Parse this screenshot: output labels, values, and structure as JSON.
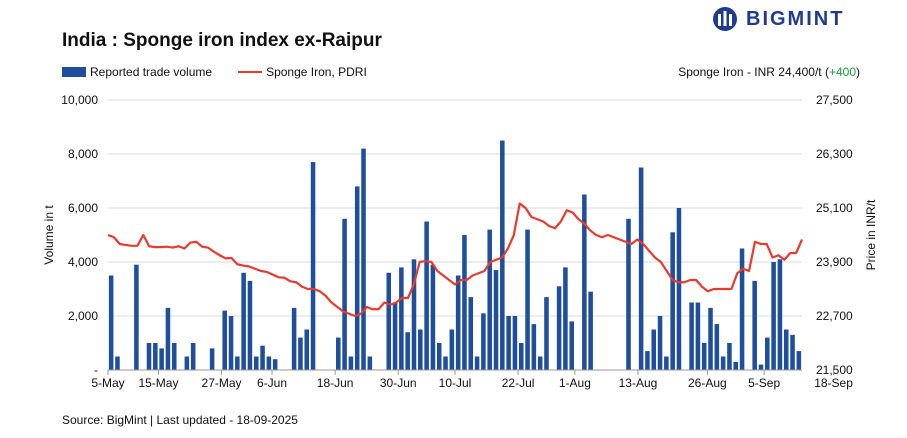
{
  "title": "India : Sponge iron index ex-Raipur",
  "brand": "BIGMINT",
  "legend": {
    "bar_label": "Reported trade volume",
    "line_label": "Sponge Iron, PDRI"
  },
  "price_note": {
    "prefix": "Sponge Iron - INR 24,400/t (",
    "change": "+400",
    "suffix": ")"
  },
  "source": "Source: BigMint | Last updated - 18-09-2025",
  "colors": {
    "bar": "#1f4e9c",
    "line": "#e83a2e",
    "grid": "#d9d9d9",
    "change": "#1a9c3a",
    "brand": "#1f3a8f"
  },
  "chart_data": {
    "type": "bar+line",
    "ylabel_left": "Volume in t",
    "ylabel_right": "Price in INR/t",
    "left_ticks": [
      "-",
      "2,000",
      "4,000",
      "6,000",
      "8,000",
      "10,000"
    ],
    "right_ticks": [
      "21,500",
      "22,700",
      "23,900",
      "25,100",
      "26,300",
      "27,500"
    ],
    "ylim_left": [
      0,
      10000
    ],
    "ylim_right": [
      21500,
      27500
    ],
    "x_tick_labels": [
      "5-May",
      "15-May",
      "27-May",
      "6-Jun",
      "18-Jun",
      "30-Jun",
      "10-Jul",
      "22-Jul",
      "1-Aug",
      "13-Aug",
      "26-Aug",
      "5-Sep",
      "18-Sep"
    ],
    "x_tick_index": [
      0,
      8,
      18,
      26,
      36,
      46,
      55,
      65,
      74,
      84,
      95,
      104,
      115
    ],
    "series": [
      {
        "name": "Reported trade volume",
        "type": "bar",
        "axis": "left",
        "values": [
          3500,
          500,
          0,
          0,
          3900,
          0,
          1000,
          1000,
          800,
          2300,
          1000,
          0,
          500,
          1000,
          0,
          0,
          800,
          0,
          2200,
          2000,
          500,
          3600,
          3300,
          500,
          900,
          500,
          400,
          0,
          0,
          2300,
          1200,
          1500,
          7700,
          0,
          0,
          0,
          1200,
          5600,
          500,
          6800,
          8200,
          500,
          0,
          0,
          3600,
          2500,
          3800,
          1400,
          4100,
          1500,
          5500,
          3900,
          1000,
          500,
          1500,
          3500,
          5000,
          2700,
          500,
          2100,
          5200,
          3700,
          8500,
          2000,
          2000,
          1000,
          5200,
          1700,
          500,
          2700,
          0,
          3100,
          3800,
          1800,
          0,
          6500,
          2900,
          0,
          0,
          0,
          0,
          0,
          5600,
          0,
          7500,
          700,
          1500,
          2000,
          500,
          5100,
          6000,
          0,
          2500,
          2500,
          1000,
          2300,
          1700,
          500,
          1000,
          300,
          4500,
          0,
          3300,
          200,
          1200,
          4000,
          4100,
          1500,
          1300,
          700
        ]
      },
      {
        "name": "Sponge Iron, PDRI",
        "type": "line",
        "axis": "right",
        "values": [
          24500,
          24450,
          24300,
          24280,
          24260,
          24260,
          24500,
          24250,
          24230,
          24230,
          24240,
          24220,
          24250,
          24200,
          24330,
          24350,
          24240,
          24220,
          24130,
          24050,
          23980,
          23990,
          23850,
          23820,
          23800,
          23750,
          23700,
          23680,
          23620,
          23560,
          23550,
          23470,
          23450,
          23350,
          23300,
          23300,
          23250,
          23150,
          23000,
          22900,
          22800,
          22750,
          22700,
          22750,
          22900,
          22850,
          22850,
          23000,
          22950,
          23000,
          23100,
          23100,
          23400,
          23900,
          23920,
          23900,
          23700,
          23600,
          23500,
          23400,
          23500,
          23500,
          23600,
          23650,
          23700,
          23900,
          23950,
          24000,
          24200,
          24500,
          25200,
          25100,
          24900,
          24850,
          24800,
          24700,
          24650,
          24800,
          25050,
          25000,
          24850,
          24750,
          24600,
          24500,
          24450,
          24500,
          24450,
          24400,
          24350,
          24300,
          24400,
          24300,
          24150,
          24000,
          23900,
          23700,
          23500,
          23450,
          23450,
          23500,
          23500,
          23350,
          23250,
          23300,
          23300,
          23300,
          23300,
          23650,
          23750,
          23700,
          24350,
          24300,
          24300,
          24000,
          24050,
          23950,
          24100,
          24100,
          24400
        ]
      }
    ]
  }
}
